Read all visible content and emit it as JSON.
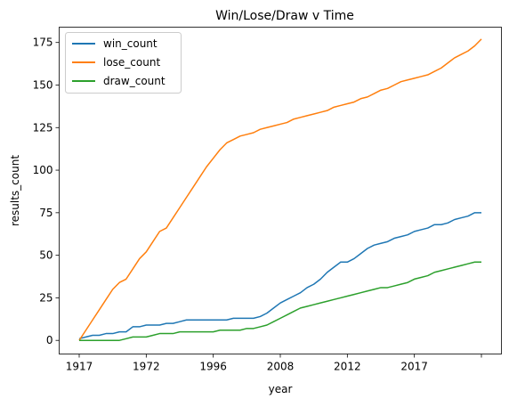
{
  "chart_data": {
    "type": "line",
    "title": "Win/Lose/Draw v Time",
    "xlabel": "year",
    "ylabel": "results_count",
    "x_ticks": [
      "1917",
      "1972",
      "1996",
      "2008",
      "2012",
      "2017",
      ""
    ],
    "x_index_range": [
      0,
      60
    ],
    "ylim": [
      -8,
      184
    ],
    "y_ticks": [
      0,
      25,
      50,
      75,
      100,
      125,
      150,
      175
    ],
    "grid": false,
    "legend_position": "top-left",
    "series": [
      {
        "name": "win_count",
        "color": "#1f77b4",
        "points": [
          [
            0,
            1
          ],
          [
            1,
            2
          ],
          [
            2,
            3
          ],
          [
            3,
            3
          ],
          [
            4,
            4
          ],
          [
            5,
            4
          ],
          [
            6,
            5
          ],
          [
            7,
            5
          ],
          [
            8,
            8
          ],
          [
            9,
            8
          ],
          [
            10,
            9
          ],
          [
            11,
            9
          ],
          [
            12,
            9
          ],
          [
            13,
            10
          ],
          [
            14,
            10
          ],
          [
            15,
            11
          ],
          [
            16,
            12
          ],
          [
            17,
            12
          ],
          [
            18,
            12
          ],
          [
            19,
            12
          ],
          [
            20,
            12
          ],
          [
            21,
            12
          ],
          [
            22,
            12
          ],
          [
            23,
            13
          ],
          [
            24,
            13
          ],
          [
            25,
            13
          ],
          [
            26,
            13
          ],
          [
            27,
            14
          ],
          [
            28,
            16
          ],
          [
            29,
            19
          ],
          [
            30,
            22
          ],
          [
            31,
            24
          ],
          [
            32,
            26
          ],
          [
            33,
            28
          ],
          [
            34,
            31
          ],
          [
            35,
            33
          ],
          [
            36,
            36
          ],
          [
            37,
            40
          ],
          [
            38,
            43
          ],
          [
            39,
            46
          ],
          [
            40,
            46
          ],
          [
            41,
            48
          ],
          [
            42,
            51
          ],
          [
            43,
            54
          ],
          [
            44,
            56
          ],
          [
            45,
            57
          ],
          [
            46,
            58
          ],
          [
            47,
            60
          ],
          [
            48,
            61
          ],
          [
            49,
            62
          ],
          [
            50,
            64
          ],
          [
            51,
            65
          ],
          [
            52,
            66
          ],
          [
            53,
            68
          ],
          [
            54,
            68
          ],
          [
            55,
            69
          ],
          [
            56,
            71
          ],
          [
            57,
            72
          ],
          [
            58,
            73
          ],
          [
            59,
            75
          ],
          [
            60,
            75
          ]
        ]
      },
      {
        "name": "lose_count",
        "color": "#ff7f0e",
        "points": [
          [
            0,
            0
          ],
          [
            1,
            6
          ],
          [
            2,
            12
          ],
          [
            3,
            18
          ],
          [
            4,
            24
          ],
          [
            5,
            30
          ],
          [
            6,
            34
          ],
          [
            7,
            36
          ],
          [
            8,
            42
          ],
          [
            9,
            48
          ],
          [
            10,
            52
          ],
          [
            11,
            58
          ],
          [
            12,
            64
          ],
          [
            13,
            66
          ],
          [
            14,
            72
          ],
          [
            15,
            78
          ],
          [
            16,
            84
          ],
          [
            17,
            90
          ],
          [
            18,
            96
          ],
          [
            19,
            102
          ],
          [
            20,
            107
          ],
          [
            21,
            112
          ],
          [
            22,
            116
          ],
          [
            23,
            118
          ],
          [
            24,
            120
          ],
          [
            25,
            121
          ],
          [
            26,
            122
          ],
          [
            27,
            124
          ],
          [
            28,
            125
          ],
          [
            29,
            126
          ],
          [
            30,
            127
          ],
          [
            31,
            128
          ],
          [
            32,
            130
          ],
          [
            33,
            131
          ],
          [
            34,
            132
          ],
          [
            35,
            133
          ],
          [
            36,
            134
          ],
          [
            37,
            135
          ],
          [
            38,
            137
          ],
          [
            39,
            138
          ],
          [
            40,
            139
          ],
          [
            41,
            140
          ],
          [
            42,
            142
          ],
          [
            43,
            143
          ],
          [
            44,
            145
          ],
          [
            45,
            147
          ],
          [
            46,
            148
          ],
          [
            47,
            150
          ],
          [
            48,
            152
          ],
          [
            49,
            153
          ],
          [
            50,
            154
          ],
          [
            51,
            155
          ],
          [
            52,
            156
          ],
          [
            53,
            158
          ],
          [
            54,
            160
          ],
          [
            55,
            163
          ],
          [
            56,
            166
          ],
          [
            57,
            168
          ],
          [
            58,
            170
          ],
          [
            59,
            173
          ],
          [
            60,
            177
          ]
        ]
      },
      {
        "name": "draw_count",
        "color": "#2ca02c",
        "points": [
          [
            0,
            0
          ],
          [
            1,
            0
          ],
          [
            2,
            0
          ],
          [
            3,
            0
          ],
          [
            4,
            0
          ],
          [
            5,
            0
          ],
          [
            6,
            0
          ],
          [
            7,
            1
          ],
          [
            8,
            2
          ],
          [
            9,
            2
          ],
          [
            10,
            2
          ],
          [
            11,
            3
          ],
          [
            12,
            4
          ],
          [
            13,
            4
          ],
          [
            14,
            4
          ],
          [
            15,
            5
          ],
          [
            16,
            5
          ],
          [
            17,
            5
          ],
          [
            18,
            5
          ],
          [
            19,
            5
          ],
          [
            20,
            5
          ],
          [
            21,
            6
          ],
          [
            22,
            6
          ],
          [
            23,
            6
          ],
          [
            24,
            6
          ],
          [
            25,
            7
          ],
          [
            26,
            7
          ],
          [
            27,
            8
          ],
          [
            28,
            9
          ],
          [
            29,
            11
          ],
          [
            30,
            13
          ],
          [
            31,
            15
          ],
          [
            32,
            17
          ],
          [
            33,
            19
          ],
          [
            34,
            20
          ],
          [
            35,
            21
          ],
          [
            36,
            22
          ],
          [
            37,
            23
          ],
          [
            38,
            24
          ],
          [
            39,
            25
          ],
          [
            40,
            26
          ],
          [
            41,
            27
          ],
          [
            42,
            28
          ],
          [
            43,
            29
          ],
          [
            44,
            30
          ],
          [
            45,
            31
          ],
          [
            46,
            31
          ],
          [
            47,
            32
          ],
          [
            48,
            33
          ],
          [
            49,
            34
          ],
          [
            50,
            36
          ],
          [
            51,
            37
          ],
          [
            52,
            38
          ],
          [
            53,
            40
          ],
          [
            54,
            41
          ],
          [
            55,
            42
          ],
          [
            56,
            43
          ],
          [
            57,
            44
          ],
          [
            58,
            45
          ],
          [
            59,
            46
          ],
          [
            60,
            46
          ]
        ]
      }
    ]
  }
}
